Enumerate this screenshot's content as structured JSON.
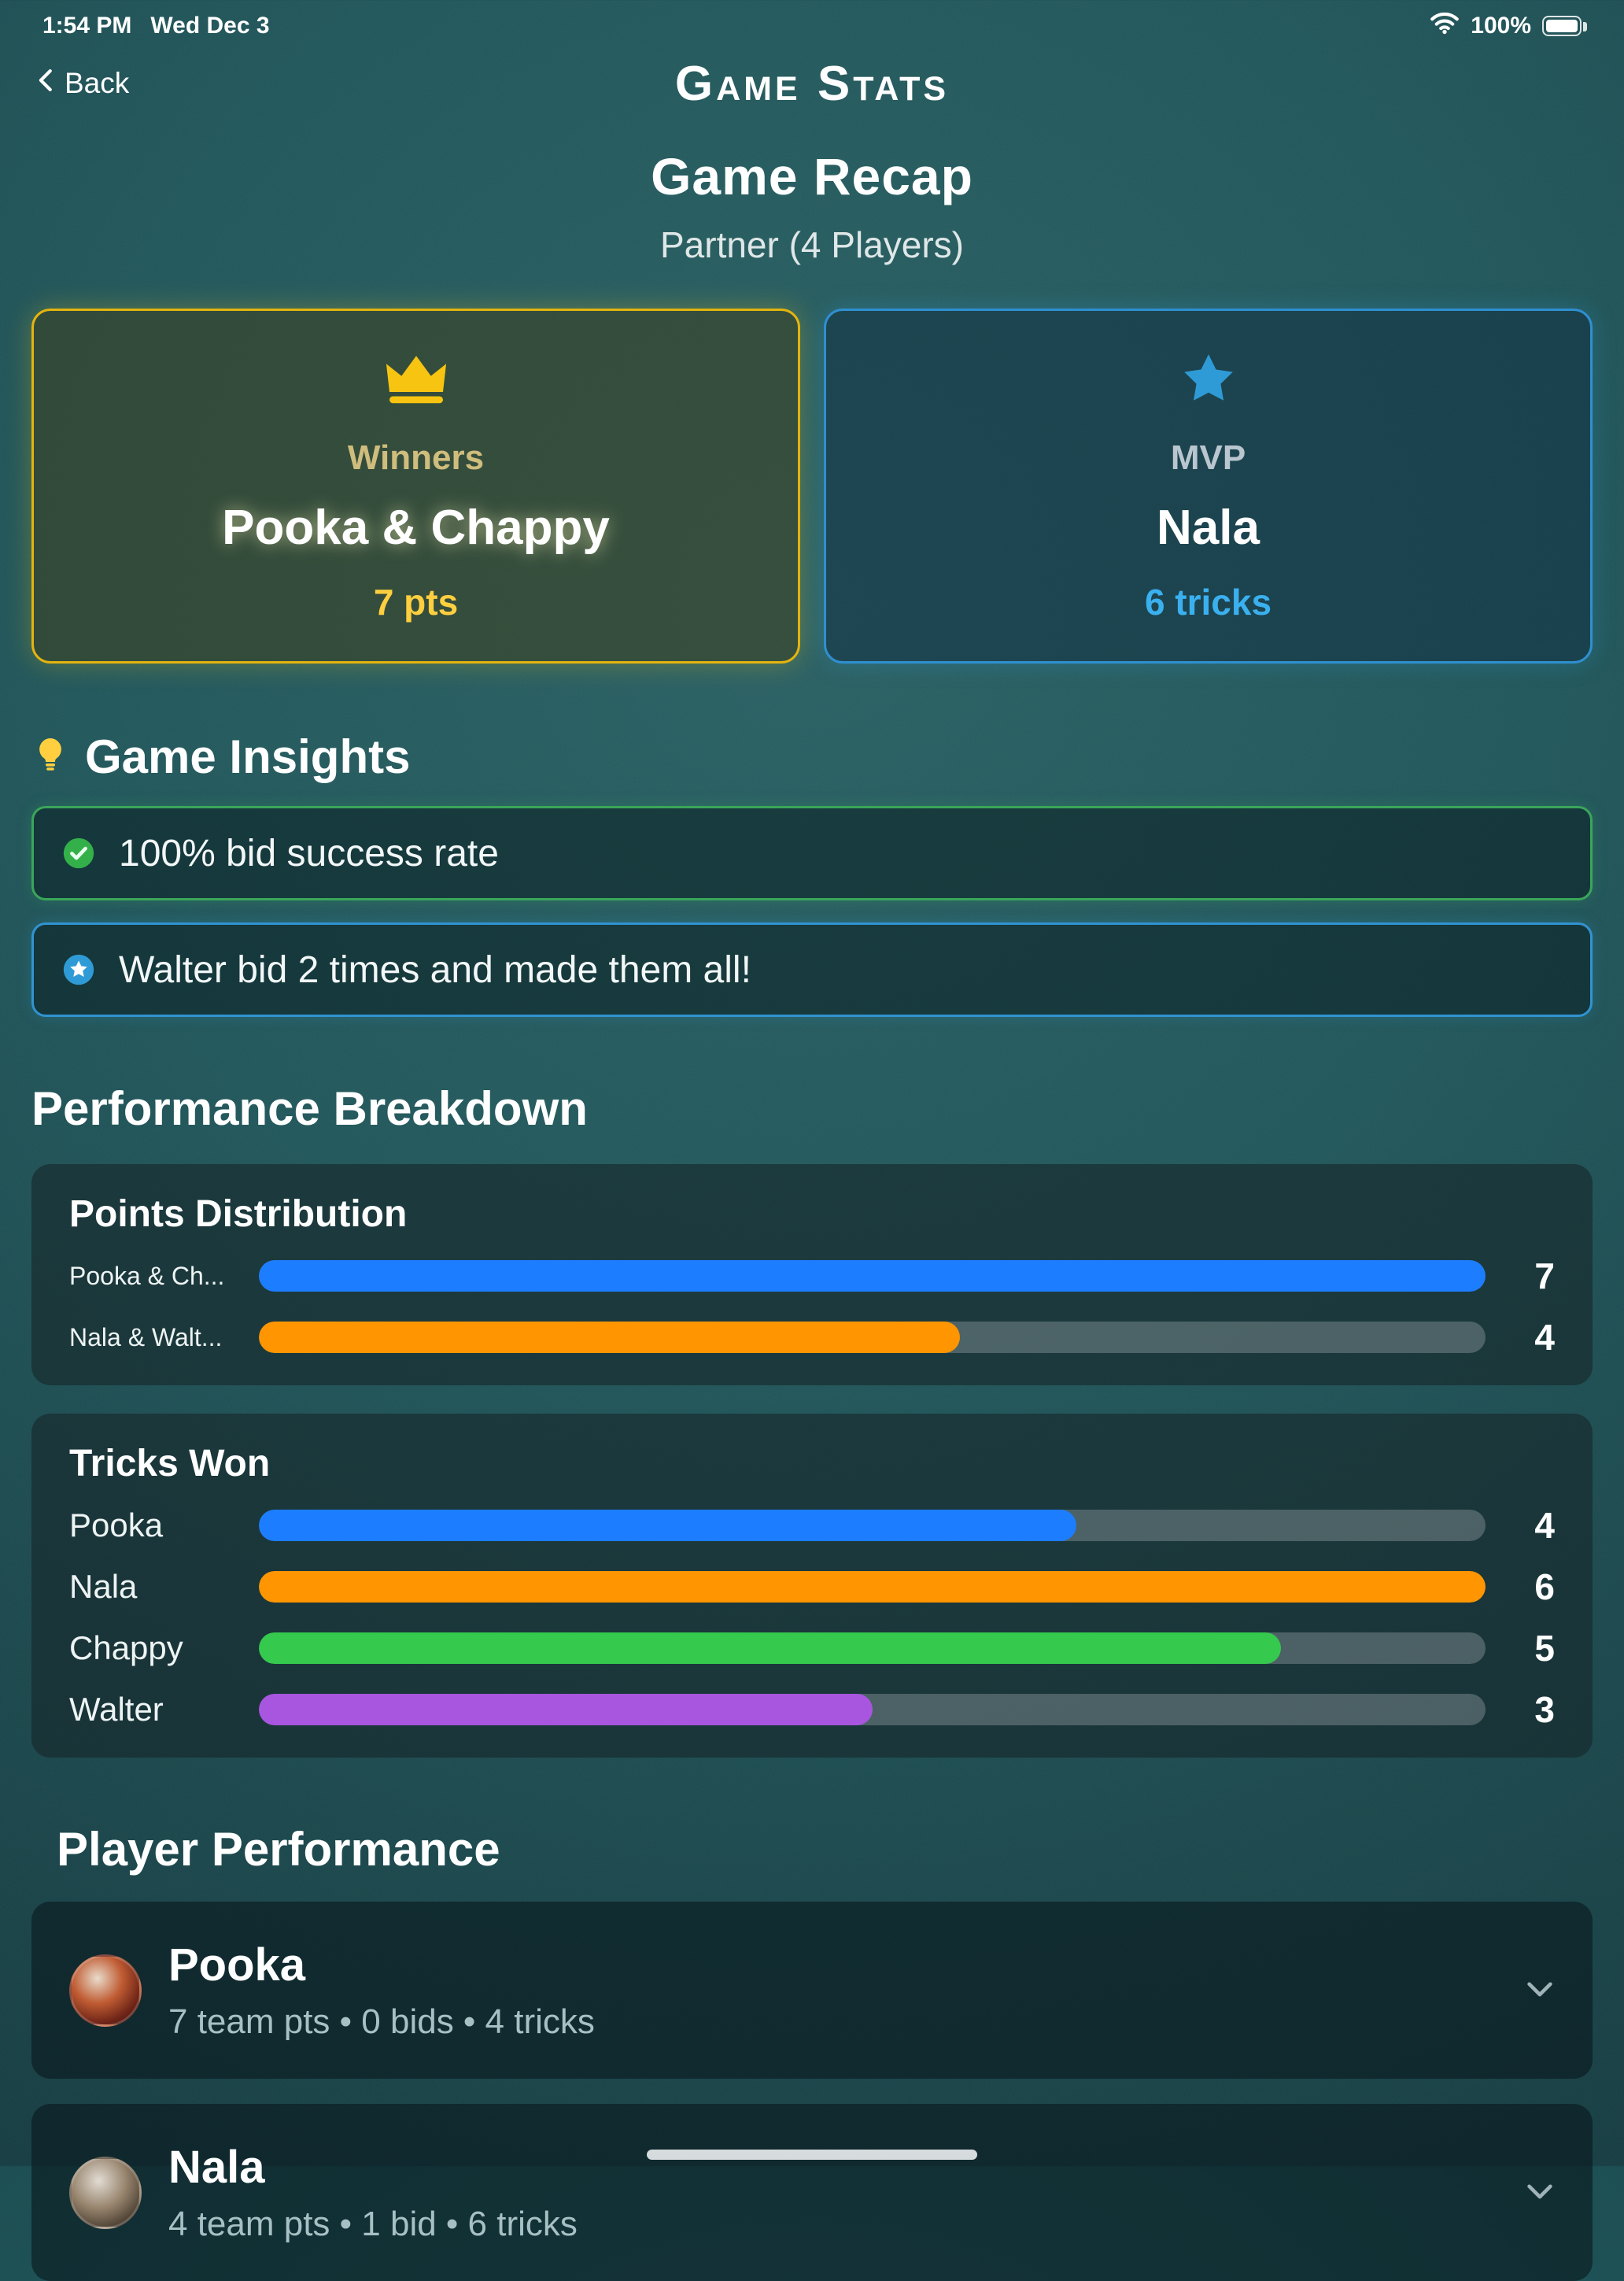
{
  "status_bar": {
    "time": "1:54 PM",
    "date": "Wed Dec 3",
    "battery_percent": "100%"
  },
  "nav": {
    "back_label": "Back",
    "title": "Game Stats"
  },
  "recap": {
    "title": "Game Recap",
    "subtitle": "Partner (4 Players)"
  },
  "summary": {
    "winners": {
      "label": "Winners",
      "names": "Pooka & Chappy",
      "points": "7 pts",
      "accent": "#f6c411"
    },
    "mvp": {
      "label": "MVP",
      "name": "Nala",
      "tricks": "6 tricks",
      "accent": "#2f9bd6"
    }
  },
  "insights": {
    "heading": "Game Insights",
    "items": [
      {
        "icon": "check-seal-icon",
        "type": "success",
        "text": "100% bid success rate",
        "border": "#3aa65a"
      },
      {
        "icon": "star-seal-icon",
        "type": "info",
        "text": "Walter bid 2 times and made them all!",
        "border": "#3193d1"
      }
    ]
  },
  "performance_heading": "Performance Breakdown",
  "chart_data": [
    {
      "type": "bar",
      "orientation": "horizontal",
      "title": "Points Distribution",
      "categories": [
        "Pooka & Ch...",
        "Nala & Walt..."
      ],
      "values": [
        7,
        4
      ],
      "xlim": [
        0,
        7
      ],
      "colors": [
        "#1d7dff",
        "#ff9500"
      ],
      "value_labels": [
        "7",
        "4"
      ],
      "grid": false,
      "legend": false
    },
    {
      "type": "bar",
      "orientation": "horizontal",
      "title": "Tricks Won",
      "categories": [
        "Pooka",
        "Nala",
        "Chappy",
        "Walter"
      ],
      "values": [
        4,
        6,
        5,
        3
      ],
      "xlim": [
        0,
        6
      ],
      "colors": [
        "#1d7dff",
        "#ff9500",
        "#35c94e",
        "#a855e0"
      ],
      "value_labels": [
        "4",
        "6",
        "5",
        "3"
      ],
      "grid": false,
      "legend": false
    }
  ],
  "players": {
    "heading": "Player Performance",
    "items": [
      {
        "name": "Pooka",
        "stats": "7 team pts • 0 bids • 4 tricks"
      },
      {
        "name": "Nala",
        "stats": "4 team pts • 1 bid • 6 tricks"
      }
    ]
  }
}
